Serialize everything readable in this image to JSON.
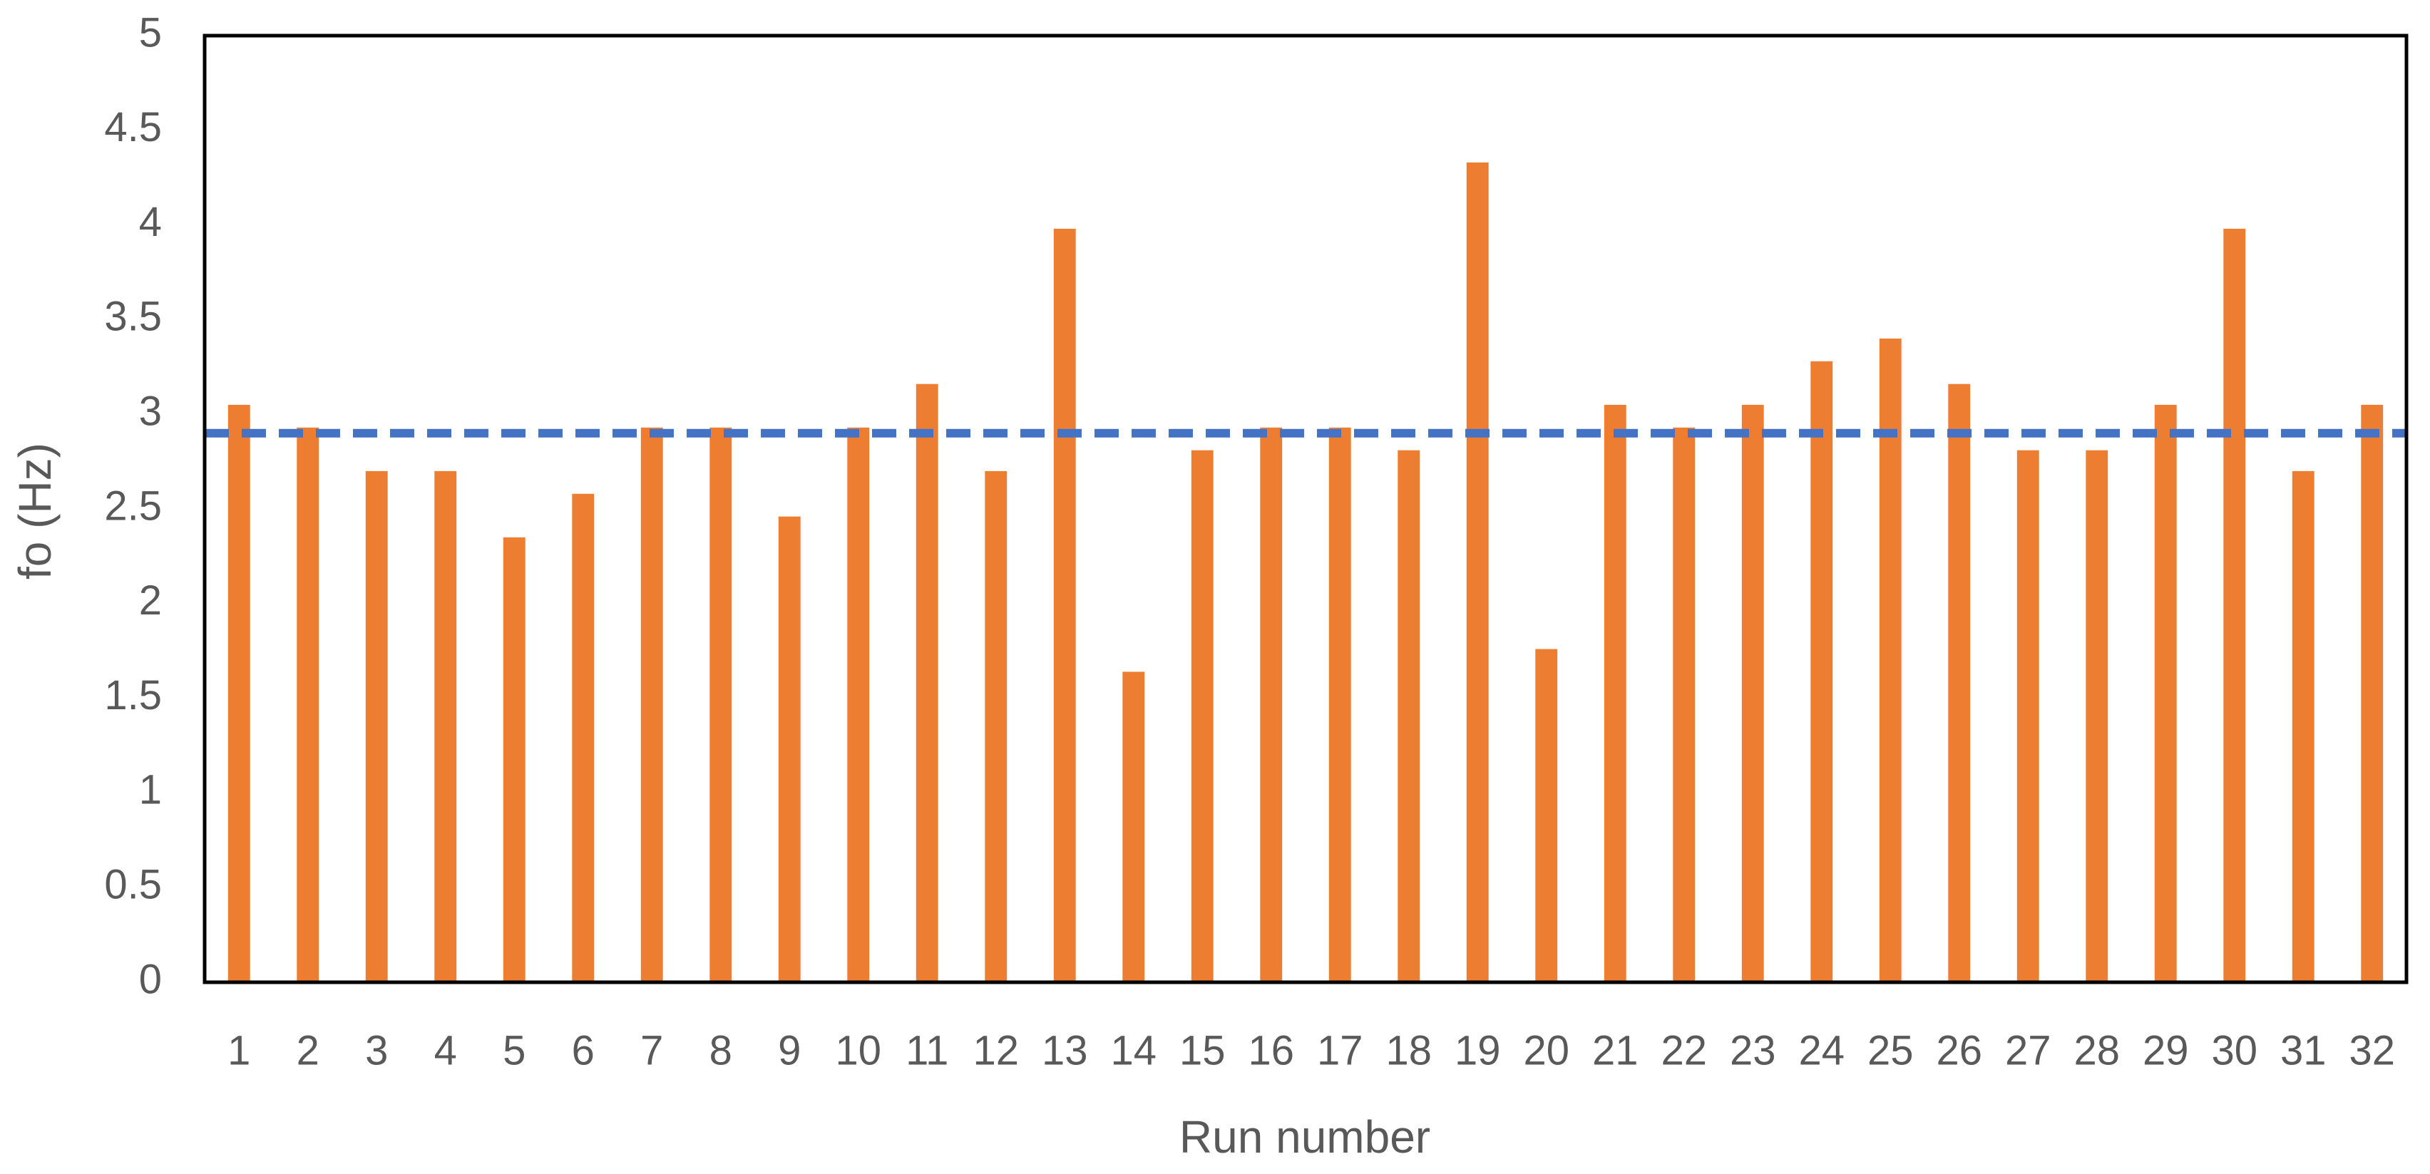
{
  "chart_data": {
    "type": "bar",
    "x_label": "Run number",
    "y_label": "fo (Hz)",
    "categories": [
      "1",
      "2",
      "3",
      "4",
      "5",
      "6",
      "7",
      "8",
      "9",
      "10",
      "11",
      "12",
      "13",
      "14",
      "15",
      "16",
      "17",
      "18",
      "19",
      "20",
      "21",
      "22",
      "23",
      "24",
      "25",
      "26",
      "27",
      "28",
      "29",
      "30",
      "31",
      "32"
    ],
    "values": [
      3.05,
      2.93,
      2.7,
      2.7,
      2.35,
      2.58,
      2.93,
      2.93,
      2.46,
      2.93,
      3.16,
      2.7,
      3.98,
      1.64,
      2.81,
      2.93,
      2.93,
      2.81,
      4.33,
      1.76,
      3.05,
      2.93,
      3.05,
      3.28,
      3.4,
      3.16,
      2.81,
      2.81,
      3.05,
      3.98,
      2.7,
      3.05
    ],
    "color": "#ed7d31",
    "ylim": [
      0,
      5
    ],
    "yticks": [
      0,
      0.5,
      1,
      1.5,
      2,
      2.5,
      3,
      3.5,
      4,
      4.5,
      5
    ],
    "grid": false,
    "reference_line": {
      "value": 2.9,
      "color": "#4472c4",
      "style": "dashed"
    }
  }
}
